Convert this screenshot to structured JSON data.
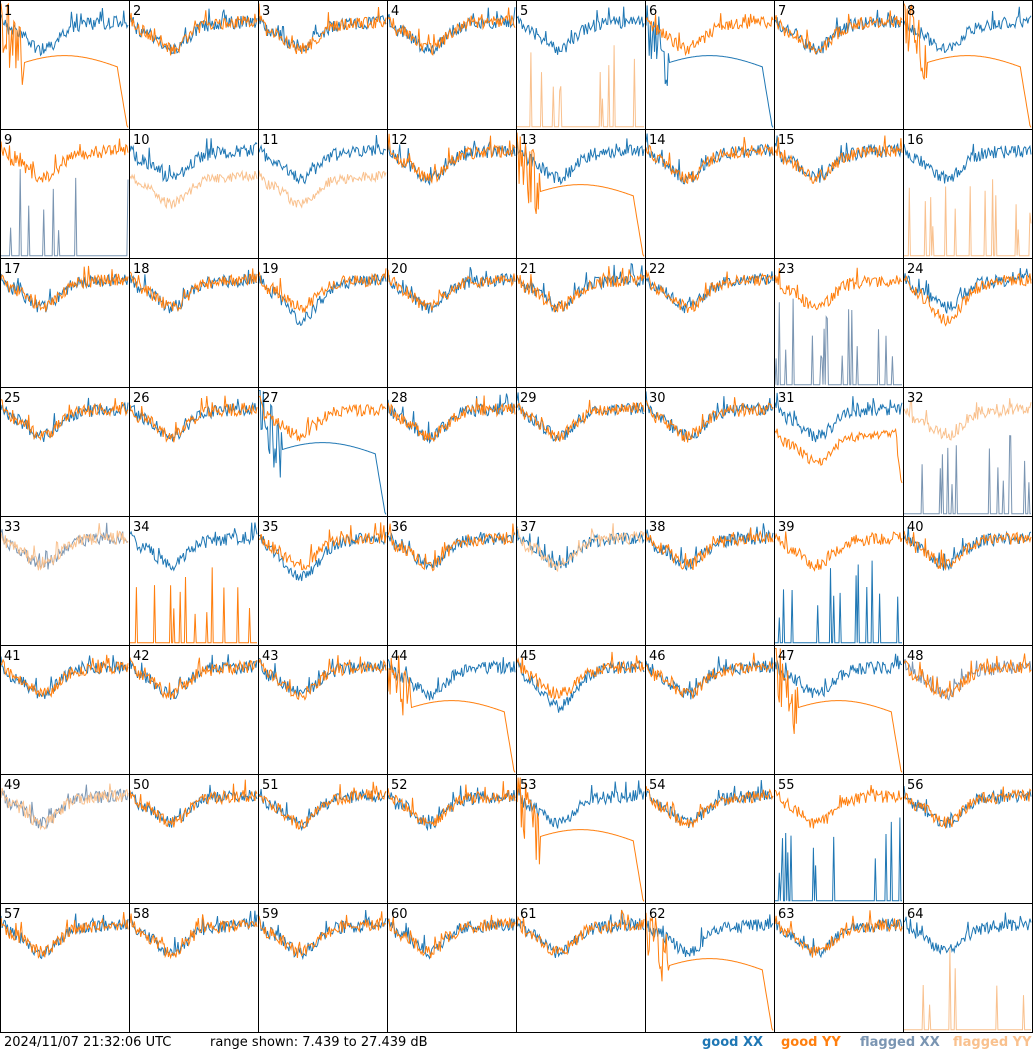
{
  "footer": {
    "timestamp": "2024/11/07 21:32:06 UTC",
    "range_text": "range shown: 7.439 to 27.439 dB"
  },
  "chart_data": {
    "type": "line",
    "layout": "small-multiples 8x8",
    "ylim": [
      7.439,
      27.439
    ],
    "yunit": "dB",
    "legend": [
      {
        "name": "good XX",
        "color": "#1f77b4",
        "key": "gx"
      },
      {
        "name": "good YY",
        "color": "#ff7f0e",
        "key": "gy"
      },
      {
        "name": "flagged XX",
        "color": "#7a95b2",
        "key": "fx"
      },
      {
        "name": "flagged YY",
        "color": "#f9c18e",
        "key": "fy"
      }
    ],
    "legend_placement": "bottom-right",
    "panels": [
      {
        "n": "1",
        "xx": "good",
        "yy": "good",
        "xx_profile": "normal",
        "yy_profile": "dome",
        "yy_cutoff": true
      },
      {
        "n": "2",
        "xx": "good",
        "yy": "good",
        "xx_profile": "normal",
        "yy_profile": "normal"
      },
      {
        "n": "3",
        "xx": "good",
        "yy": "good",
        "xx_profile": "normal",
        "yy_profile": "normal"
      },
      {
        "n": "4",
        "xx": "good",
        "yy": "good",
        "xx_profile": "normal",
        "yy_profile": "normal"
      },
      {
        "n": "5",
        "xx": "good",
        "yy": "flagged",
        "xx_profile": "normal",
        "yy_profile": "spikes"
      },
      {
        "n": "6",
        "xx": "good",
        "yy": "good",
        "xx_profile": "dome",
        "yy_profile": "normal",
        "xx_cutoff": true
      },
      {
        "n": "7",
        "xx": "good",
        "yy": "good",
        "xx_profile": "normal",
        "yy_profile": "normal"
      },
      {
        "n": "8",
        "xx": "good",
        "yy": "good",
        "xx_profile": "normal",
        "yy_profile": "dome",
        "yy_cutoff": true
      },
      {
        "n": "9",
        "xx": "flagged",
        "yy": "good",
        "xx_profile": "spikes",
        "yy_profile": "normal"
      },
      {
        "n": "10",
        "xx": "good",
        "yy": "flagged",
        "xx_profile": "normal",
        "yy_profile": "low"
      },
      {
        "n": "11",
        "xx": "good",
        "yy": "flagged",
        "xx_profile": "normal",
        "yy_profile": "low"
      },
      {
        "n": "12",
        "xx": "good",
        "yy": "good",
        "xx_profile": "normal",
        "yy_profile": "normal"
      },
      {
        "n": "13",
        "xx": "good",
        "yy": "good",
        "xx_profile": "normal",
        "yy_profile": "dome",
        "yy_cutoff": true
      },
      {
        "n": "14",
        "xx": "good",
        "yy": "good",
        "xx_profile": "normal",
        "yy_profile": "normal"
      },
      {
        "n": "15",
        "xx": "good",
        "yy": "good",
        "xx_profile": "normal",
        "yy_profile": "normal"
      },
      {
        "n": "16",
        "xx": "good",
        "yy": "flagged",
        "xx_profile": "normal",
        "yy_profile": "spikes"
      },
      {
        "n": "17",
        "xx": "good",
        "yy": "good",
        "xx_profile": "normal",
        "yy_profile": "normal"
      },
      {
        "n": "18",
        "xx": "good",
        "yy": "good",
        "xx_profile": "normal",
        "yy_profile": "normal"
      },
      {
        "n": "19",
        "xx": "good",
        "yy": "good",
        "xx_profile": "deep",
        "yy_profile": "normal"
      },
      {
        "n": "20",
        "xx": "good",
        "yy": "good",
        "xx_profile": "normal",
        "yy_profile": "normal"
      },
      {
        "n": "21",
        "xx": "good",
        "yy": "good",
        "xx_profile": "normal",
        "yy_profile": "normal"
      },
      {
        "n": "22",
        "xx": "good",
        "yy": "good",
        "xx_profile": "normal",
        "yy_profile": "normal"
      },
      {
        "n": "23",
        "xx": "flagged",
        "yy": "good",
        "xx_profile": "spikes",
        "yy_profile": "normal"
      },
      {
        "n": "24",
        "xx": "good",
        "yy": "good",
        "xx_profile": "normal",
        "yy_profile": "deep"
      },
      {
        "n": "25",
        "xx": "good",
        "yy": "good",
        "xx_profile": "normal",
        "yy_profile": "normal"
      },
      {
        "n": "26",
        "xx": "good",
        "yy": "good",
        "xx_profile": "normal",
        "yy_profile": "normal"
      },
      {
        "n": "27",
        "xx": "good",
        "yy": "good",
        "xx_profile": "dome",
        "yy_profile": "normal",
        "xx_cutoff": true
      },
      {
        "n": "28",
        "xx": "good",
        "yy": "good",
        "xx_profile": "normal",
        "yy_profile": "normal"
      },
      {
        "n": "29",
        "xx": "good",
        "yy": "good",
        "xx_profile": "normal",
        "yy_profile": "normal"
      },
      {
        "n": "30",
        "xx": "good",
        "yy": "good",
        "xx_profile": "normal",
        "yy_profile": "normal"
      },
      {
        "n": "31",
        "xx": "good",
        "yy": "good",
        "xx_profile": "normal",
        "yy_profile": "low",
        "yy_cutoff": true
      },
      {
        "n": "32",
        "xx": "flagged",
        "yy": "flagged",
        "xx_profile": "spikes",
        "yy_profile": "normal"
      },
      {
        "n": "33",
        "xx": "flagged",
        "yy": "flagged",
        "xx_profile": "normal",
        "yy_profile": "normal"
      },
      {
        "n": "34",
        "xx": "good",
        "yy": "good",
        "xx_profile": "normal",
        "yy_profile": "spikes"
      },
      {
        "n": "35",
        "xx": "good",
        "yy": "good",
        "xx_profile": "deep",
        "yy_profile": "normal"
      },
      {
        "n": "36",
        "xx": "good",
        "yy": "good",
        "xx_profile": "normal",
        "yy_profile": "normal"
      },
      {
        "n": "37",
        "xx": "good",
        "yy": "flagged",
        "xx_profile": "normal",
        "yy_profile": "normal"
      },
      {
        "n": "38",
        "xx": "good",
        "yy": "good",
        "xx_profile": "normal",
        "yy_profile": "normal"
      },
      {
        "n": "39",
        "xx": "good",
        "yy": "good",
        "xx_profile": "spikes",
        "yy_profile": "normal"
      },
      {
        "n": "40",
        "xx": "good",
        "yy": "good",
        "xx_profile": "normal",
        "yy_profile": "normal"
      },
      {
        "n": "41",
        "xx": "good",
        "yy": "good",
        "xx_profile": "normal",
        "yy_profile": "normal"
      },
      {
        "n": "42",
        "xx": "good",
        "yy": "good",
        "xx_profile": "normal",
        "yy_profile": "normal"
      },
      {
        "n": "43",
        "xx": "good",
        "yy": "good",
        "xx_profile": "normal",
        "yy_profile": "normal"
      },
      {
        "n": "44",
        "xx": "good",
        "yy": "good",
        "xx_profile": "normal",
        "yy_profile": "dome",
        "yy_cutoff": true
      },
      {
        "n": "45",
        "xx": "good",
        "yy": "good",
        "xx_profile": "deep",
        "yy_profile": "normal"
      },
      {
        "n": "46",
        "xx": "good",
        "yy": "good",
        "xx_profile": "normal",
        "yy_profile": "normal"
      },
      {
        "n": "47",
        "xx": "good",
        "yy": "good",
        "xx_profile": "normal",
        "yy_profile": "dome",
        "yy_cutoff": true
      },
      {
        "n": "48",
        "xx": "flagged",
        "yy": "good",
        "xx_profile": "normal",
        "yy_profile": "normal"
      },
      {
        "n": "49",
        "xx": "flagged",
        "yy": "flagged",
        "xx_profile": "normal",
        "yy_profile": "normal"
      },
      {
        "n": "50",
        "xx": "good",
        "yy": "good",
        "xx_profile": "normal",
        "yy_profile": "normal"
      },
      {
        "n": "51",
        "xx": "good",
        "yy": "good",
        "xx_profile": "normal",
        "yy_profile": "normal"
      },
      {
        "n": "52",
        "xx": "good",
        "yy": "good",
        "xx_profile": "normal",
        "yy_profile": "normal"
      },
      {
        "n": "53",
        "xx": "good",
        "yy": "good",
        "xx_profile": "normal",
        "yy_profile": "dome",
        "yy_cutoff": true
      },
      {
        "n": "54",
        "xx": "good",
        "yy": "good",
        "xx_profile": "normal",
        "yy_profile": "normal"
      },
      {
        "n": "55",
        "xx": "good",
        "yy": "good",
        "xx_profile": "spikes",
        "yy_profile": "normal"
      },
      {
        "n": "56",
        "xx": "good",
        "yy": "good",
        "xx_profile": "normal",
        "yy_profile": "normal"
      },
      {
        "n": "57",
        "xx": "good",
        "yy": "good",
        "xx_profile": "normal",
        "yy_profile": "normal"
      },
      {
        "n": "58",
        "xx": "good",
        "yy": "good",
        "xx_profile": "normal",
        "yy_profile": "normal"
      },
      {
        "n": "59",
        "xx": "good",
        "yy": "good",
        "xx_profile": "normal",
        "yy_profile": "normal"
      },
      {
        "n": "60",
        "xx": "good",
        "yy": "good",
        "xx_profile": "normal",
        "yy_profile": "normal"
      },
      {
        "n": "61",
        "xx": "good",
        "yy": "good",
        "xx_profile": "normal",
        "yy_profile": "normal"
      },
      {
        "n": "62",
        "xx": "good",
        "yy": "good",
        "xx_profile": "normal",
        "yy_profile": "dome",
        "yy_cutoff": true
      },
      {
        "n": "63",
        "xx": "good",
        "yy": "good",
        "xx_profile": "normal",
        "yy_profile": "normal"
      },
      {
        "n": "64",
        "xx": "good",
        "yy": "flagged",
        "xx_profile": "normal",
        "yy_profile": "spikes"
      }
    ]
  }
}
